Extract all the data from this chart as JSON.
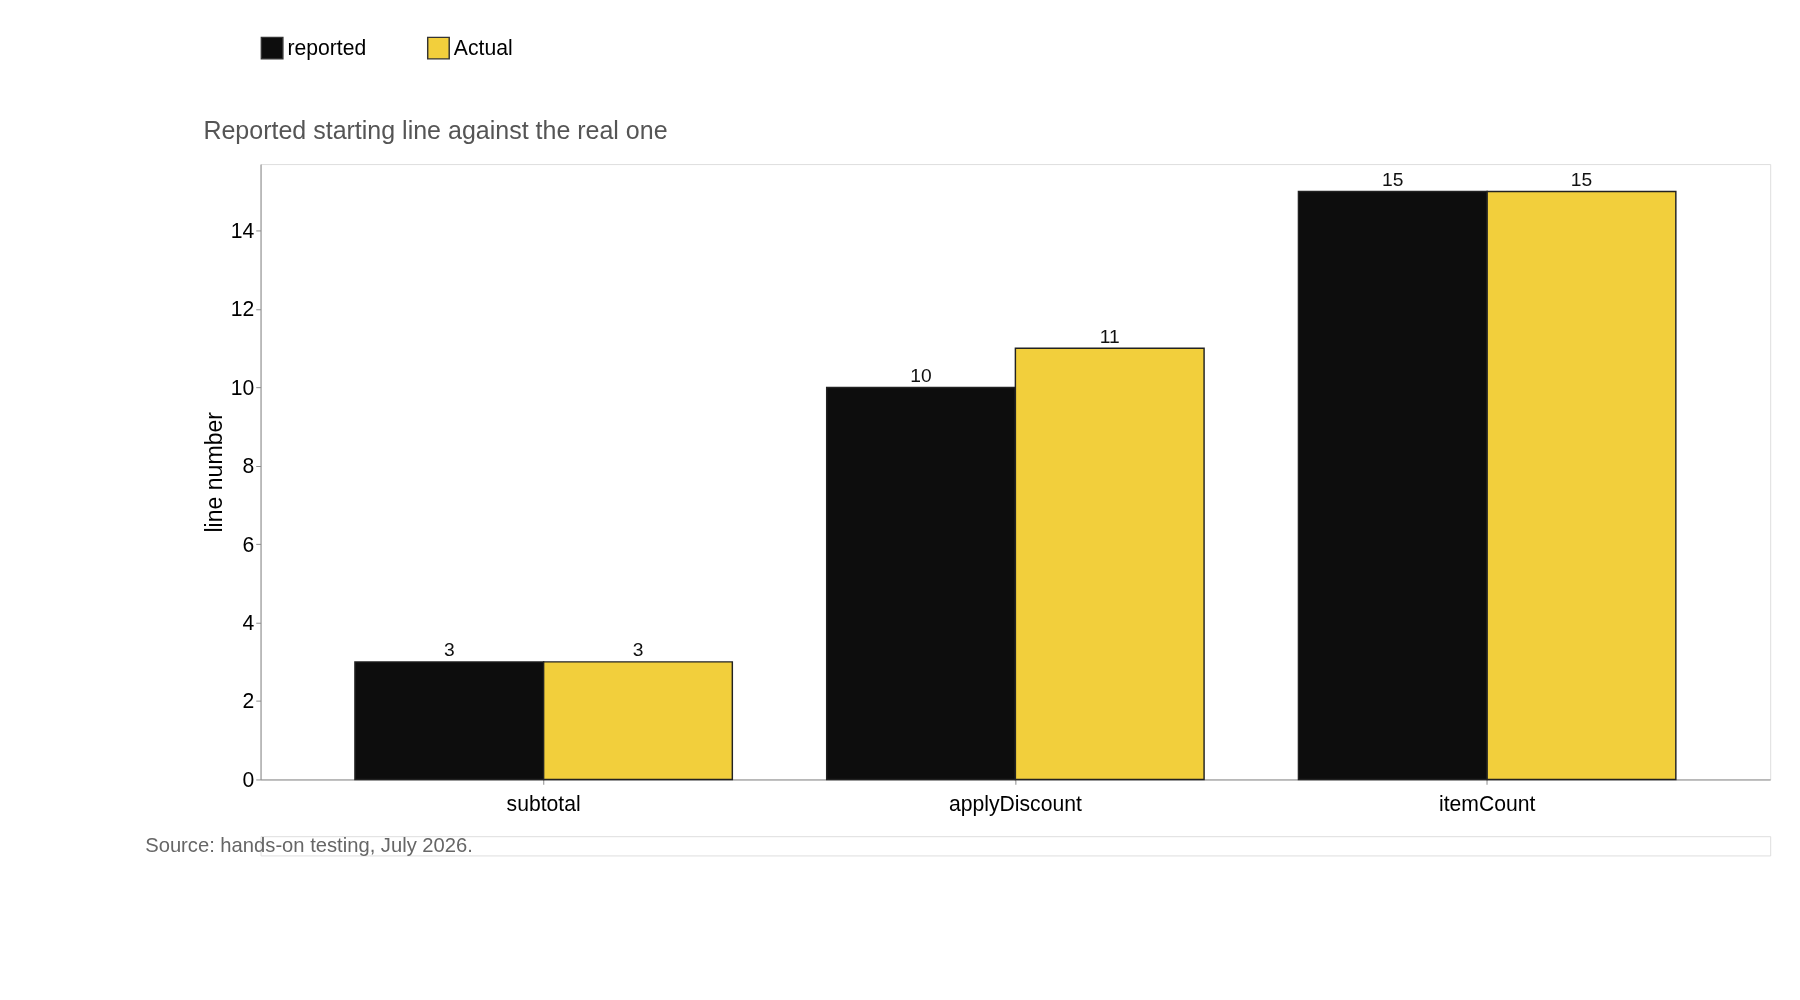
{
  "chart_data": {
    "type": "bar",
    "subtitle": "Reported starting line against the real one",
    "ylabel": "line number",
    "categories": [
      "subtotal",
      "applyDiscount",
      "itemCount"
    ],
    "series": [
      {
        "name": "reported",
        "color": "#0d0d0d",
        "values": [
          3,
          10,
          15
        ]
      },
      {
        "name": "Actual",
        "color": "#f2cf3c",
        "values": [
          3,
          11,
          15
        ]
      }
    ],
    "ylim": [
      0,
      15.7
    ],
    "yticks": [
      0,
      2,
      4,
      6,
      8,
      10,
      12,
      14
    ],
    "data_labels": true,
    "grid": false,
    "legend": "top",
    "annotations": [
      "Source: hands-on testing, July 2026."
    ]
  }
}
